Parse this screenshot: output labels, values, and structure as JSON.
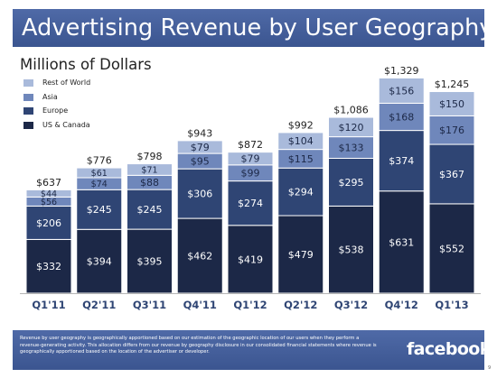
{
  "chart_data": {
    "type": "bar",
    "stacked": true,
    "title": "Advertising Revenue by User Geography",
    "subtitle": "Millions of Dollars",
    "categories": [
      "Q1'11",
      "Q2'11",
      "Q3'11",
      "Q4'11",
      "Q1'12",
      "Q2'12",
      "Q3'12",
      "Q4'12",
      "Q1'13"
    ],
    "series": [
      {
        "name": "US & Canada",
        "color": "#1c2847",
        "values": [
          332,
          394,
          395,
          462,
          419,
          479,
          538,
          631,
          552
        ]
      },
      {
        "name": "Europe",
        "color": "#2f4574",
        "values": [
          206,
          245,
          245,
          306,
          274,
          294,
          295,
          374,
          367
        ]
      },
      {
        "name": "Asia",
        "color": "#6f87bb",
        "values": [
          56,
          74,
          88,
          95,
          99,
          115,
          133,
          168,
          176
        ]
      },
      {
        "name": "Rest of World",
        "color": "#a9badb",
        "values": [
          44,
          61,
          71,
          79,
          79,
          104,
          120,
          156,
          150
        ]
      }
    ],
    "totals": [
      "$637",
      "$776",
      "$798",
      "$943",
      "$872",
      "$992",
      "$1,086",
      "$1,329",
      "$1,245"
    ],
    "value_prefix": "$",
    "legend_position": "top-left",
    "grid": false
  },
  "footer": {
    "disclaimer": "Revenue by user geography is geographically apportioned based on our estimation of the geographic location of our users when they perform a revenue-generating activity. This allocation differs from our revenue by geography disclosure in our consolidated financial statements where revenue is geographically apportioned based on the location of the advertiser or developer.",
    "logo_text": "facebook"
  },
  "page_number": "9"
}
